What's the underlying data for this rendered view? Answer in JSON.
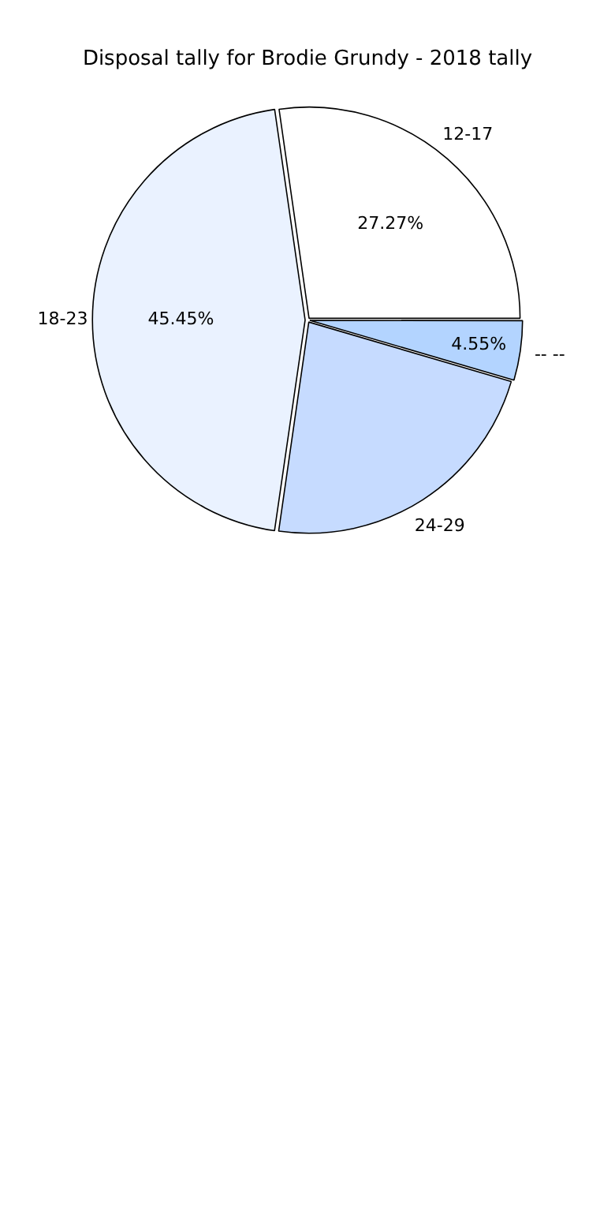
{
  "chart_data": {
    "type": "pie",
    "title": "Disposal tally for Brodie Grundy - 2018 tally",
    "categories": [
      "-- --",
      "24-29",
      "18-23",
      "12-17"
    ],
    "values": [
      4.55,
      22.73,
      45.45,
      27.27
    ],
    "colors": [
      "#b3d4ff",
      "#c6dbff",
      "#eaf2ff",
      "#ffffff"
    ],
    "value_labels": [
      "4.55%",
      null,
      "45.45%",
      "27.27%"
    ],
    "legend": false
  }
}
